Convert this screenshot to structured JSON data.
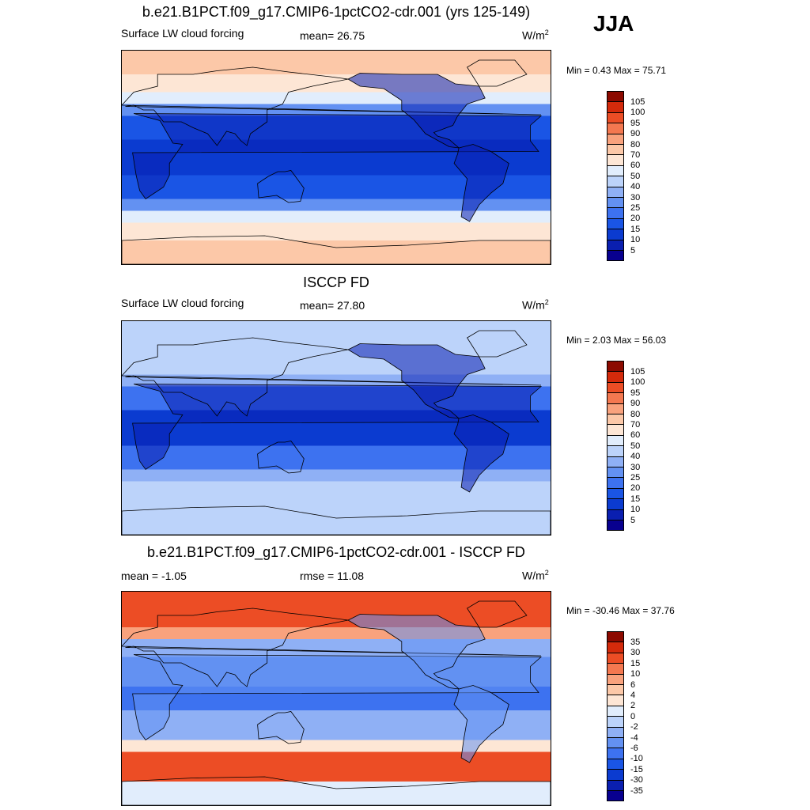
{
  "season": "JJA",
  "panels": [
    {
      "title": "b.e21.B1PCT.f09_g17.CMIP6-1pctCO2-cdr.001 (yrs 125-149)",
      "left_label": "Surface LW cloud forcing",
      "center_label": "mean=  26.75",
      "units_base": "W/m",
      "units_exp": "2",
      "minmax": "Min =   0.43 Max =  75.71"
    },
    {
      "title": "ISCCP FD",
      "left_label": "Surface LW cloud forcing",
      "center_label": "mean=  27.80",
      "units_base": "W/m",
      "units_exp": "2",
      "minmax": "Min =   2.03 Max =  56.03"
    },
    {
      "title": "b.e21.B1PCT.f09_g17.CMIP6-1pctCO2-cdr.001 - ISCCP FD",
      "left_label": "mean =  -1.05",
      "center_label": "rmse =  11.08",
      "units_base": "W/m",
      "units_exp": "2",
      "minmax": "Min = -30.46 Max =  37.76"
    }
  ],
  "chart_data": [
    {
      "type": "heatmap",
      "title": "b.e21.B1PCT.f09_g17.CMIP6-1pctCO2-cdr.001 (yrs 125-149)",
      "variable": "Surface LW cloud forcing",
      "mean": 26.75,
      "min": 0.43,
      "max": 75.71,
      "colorbar_levels": [
        5,
        10,
        15,
        20,
        25,
        30,
        40,
        50,
        60,
        70,
        80,
        90,
        95,
        100,
        105
      ],
      "colorbar_colors": [
        "#08008f",
        "#0a1fb0",
        "#0b3bd0",
        "#1a55e5",
        "#3d72f0",
        "#6391f2",
        "#8fb0f5",
        "#bcd3fa",
        "#e1edfc",
        "#fde6d5",
        "#fcc8a8",
        "#f9a27d",
        "#f47850",
        "#ec4d25",
        "#d42a0b",
        "#8c0a00"
      ]
    },
    {
      "type": "heatmap",
      "title": "ISCCP FD",
      "variable": "Surface LW cloud forcing",
      "mean": 27.8,
      "min": 2.03,
      "max": 56.03,
      "colorbar_levels": [
        5,
        10,
        15,
        20,
        25,
        30,
        40,
        50,
        60,
        70,
        80,
        90,
        95,
        100,
        105
      ],
      "colorbar_colors": [
        "#08008f",
        "#0a1fb0",
        "#0b3bd0",
        "#1a55e5",
        "#3d72f0",
        "#6391f2",
        "#8fb0f5",
        "#bcd3fa",
        "#e1edfc",
        "#fde6d5",
        "#fcc8a8",
        "#f9a27d",
        "#f47850",
        "#ec4d25",
        "#d42a0b",
        "#8c0a00"
      ]
    },
    {
      "type": "heatmap",
      "title": "b.e21.B1PCT.f09_g17.CMIP6-1pctCO2-cdr.001 - ISCCP FD",
      "mean": -1.05,
      "rmse": 11.08,
      "min": -30.46,
      "max": 37.76,
      "colorbar_levels": [
        -35,
        -30,
        -15,
        -10,
        -6,
        -4,
        -2,
        0,
        2,
        4,
        6,
        10,
        15,
        30,
        35
      ],
      "colorbar_colors": [
        "#08008f",
        "#0a1fb0",
        "#0b3bd0",
        "#1a55e5",
        "#3d72f0",
        "#6391f2",
        "#8fb0f5",
        "#bcd3fa",
        "#e1edfc",
        "#fde6d5",
        "#fcc8a8",
        "#f9a27d",
        "#f47850",
        "#ec4d25",
        "#d42a0b",
        "#8c0a00"
      ]
    }
  ]
}
